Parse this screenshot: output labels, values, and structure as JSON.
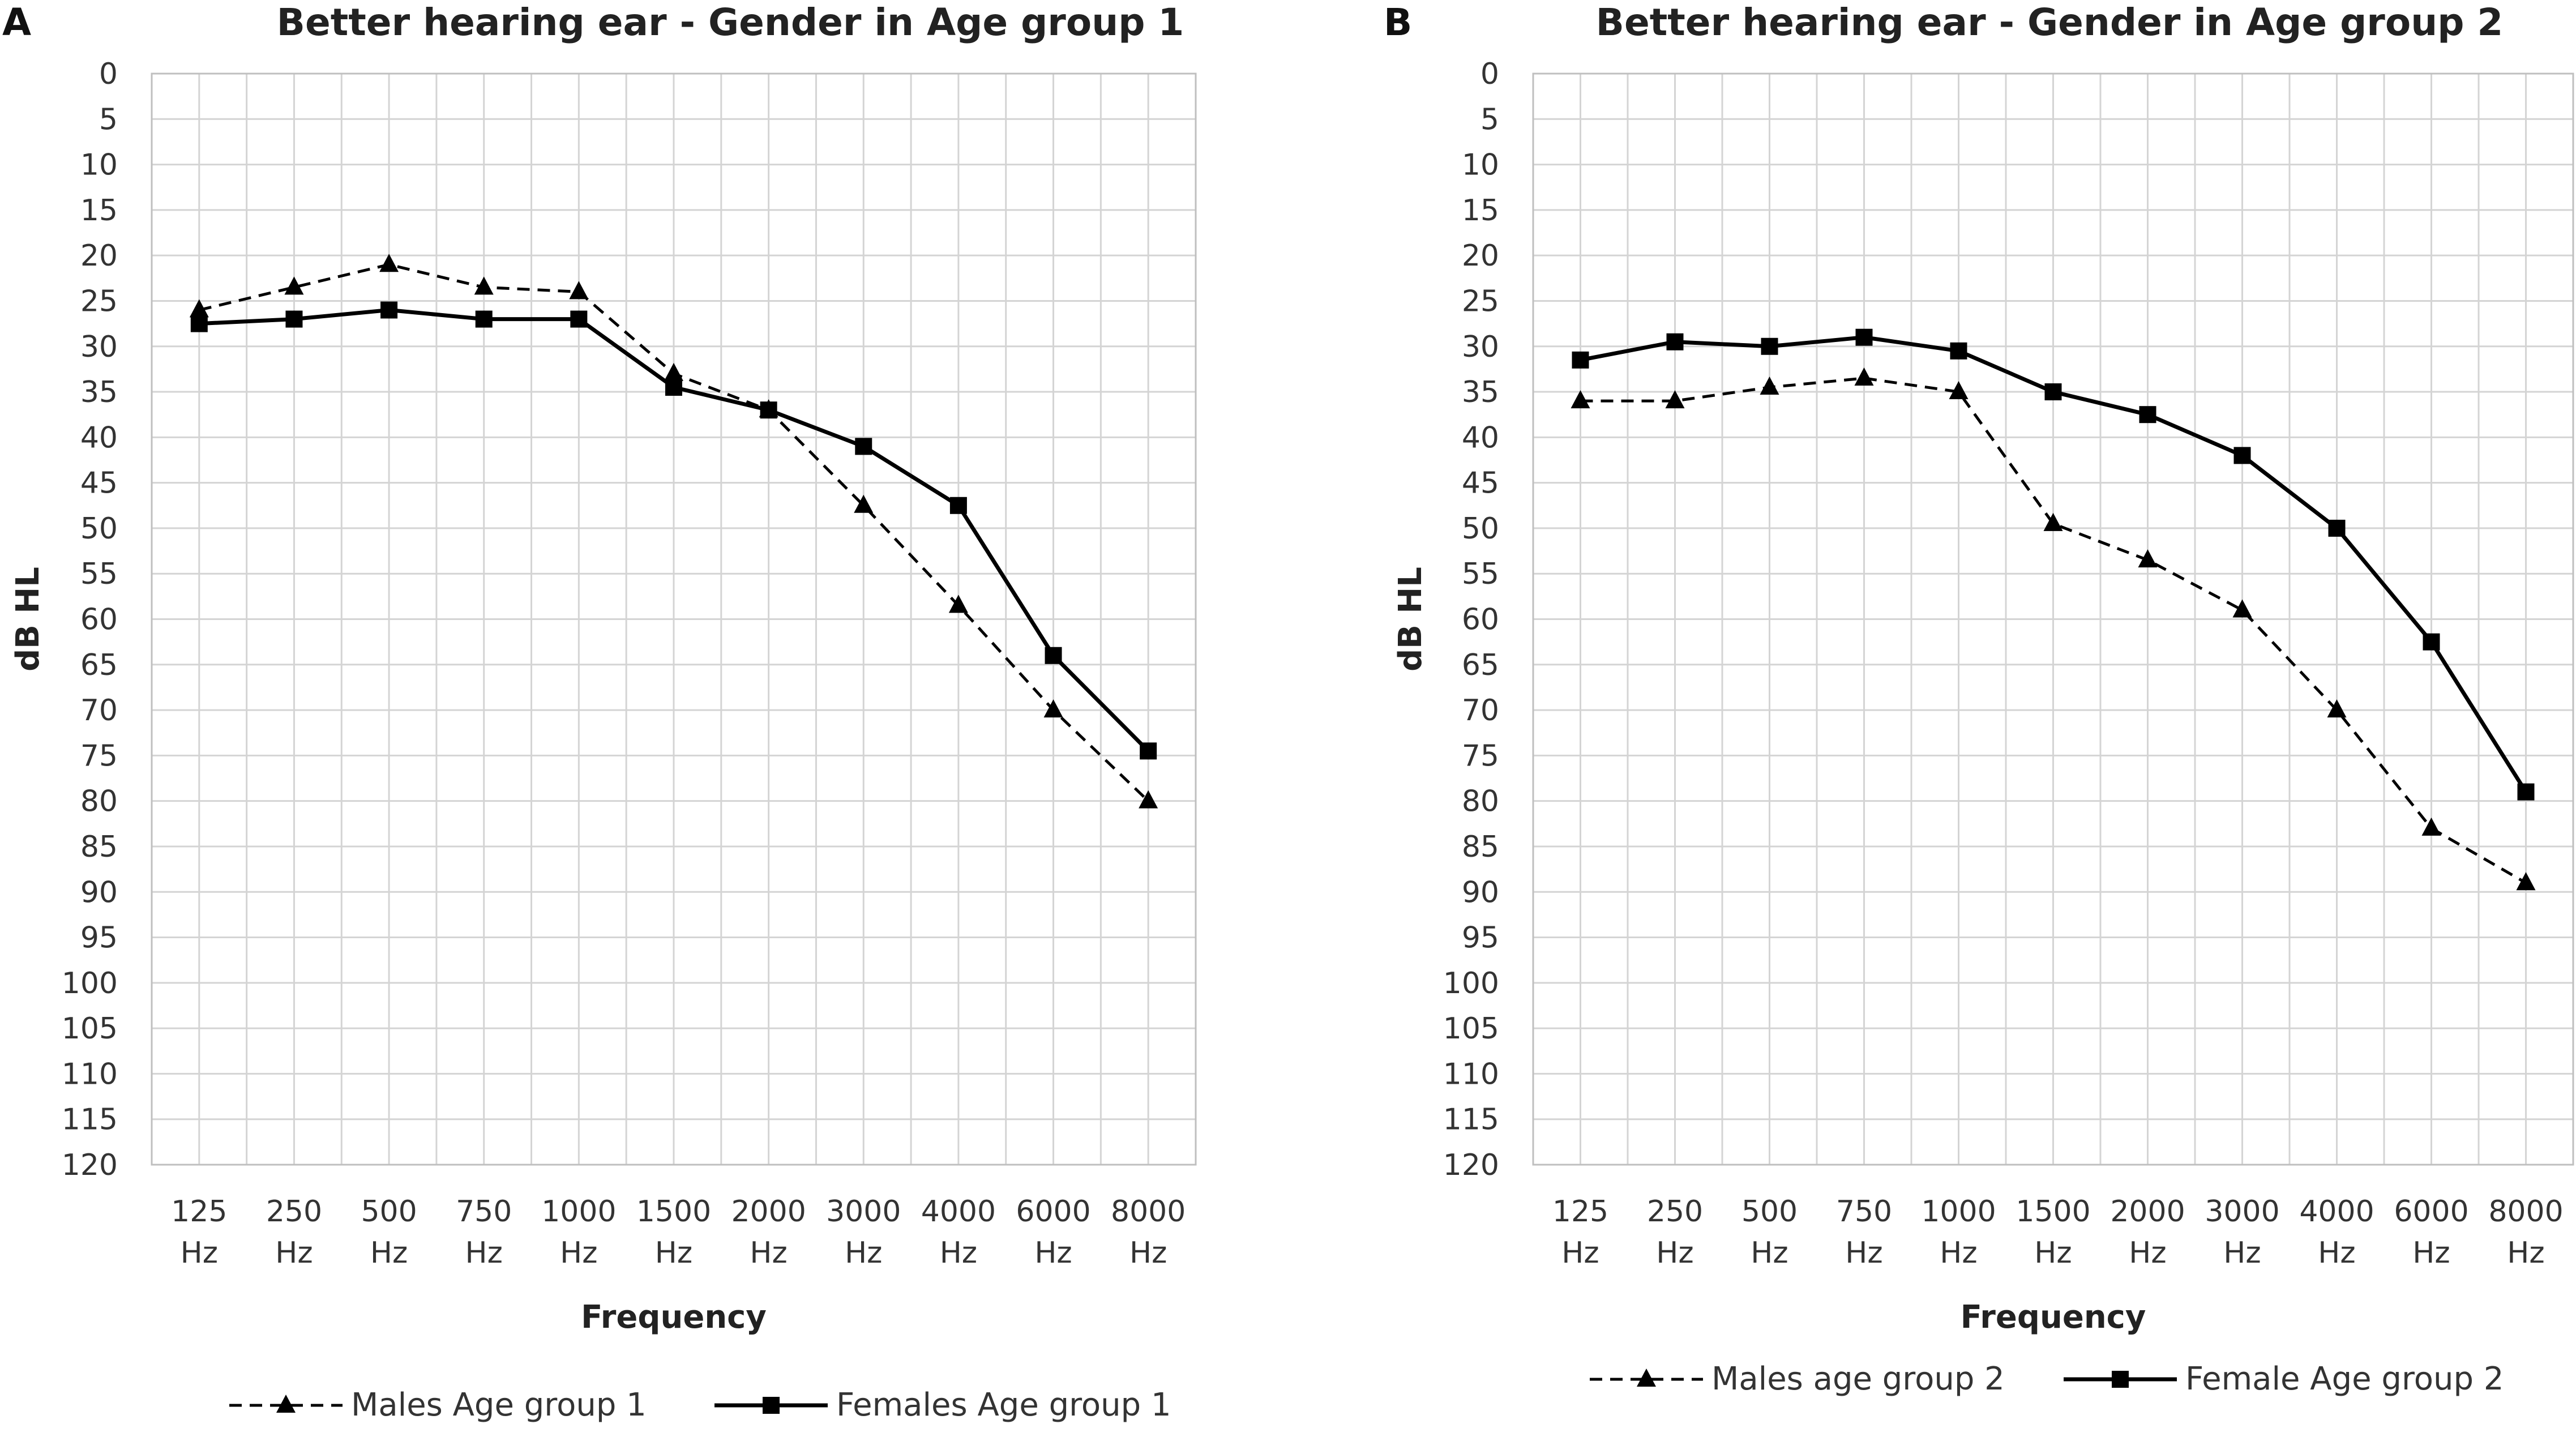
{
  "chart_data": [
    {
      "panel_label": "A",
      "type": "line",
      "title": "Better hearing ear - Gender in Age group 1",
      "xlabel": "Frequency",
      "ylabel": "dB HL",
      "ylim": [
        0,
        120
      ],
      "y_inverted": true,
      "y_ticks": [
        "0",
        "5",
        "10",
        "15",
        "20",
        "25",
        "30",
        "35",
        "40",
        "45",
        "50",
        "55",
        "60",
        "65",
        "70",
        "75",
        "80",
        "85",
        "90",
        "95",
        "100",
        "105",
        "110",
        "115",
        "120"
      ],
      "categories": [
        {
          "value": "125",
          "unit": "Hz"
        },
        {
          "value": "250",
          "unit": "Hz"
        },
        {
          "value": "500",
          "unit": "Hz"
        },
        {
          "value": "750",
          "unit": "Hz"
        },
        {
          "value": "1000",
          "unit": "Hz"
        },
        {
          "value": "1500",
          "unit": "Hz"
        },
        {
          "value": "2000",
          "unit": "Hz"
        },
        {
          "value": "3000",
          "unit": "Hz"
        },
        {
          "value": "4000",
          "unit": "Hz"
        },
        {
          "value": "6000",
          "unit": "Hz"
        },
        {
          "value": "8000",
          "unit": "Hz"
        }
      ],
      "series": [
        {
          "name": "Males Age group 1",
          "marker": "triangle",
          "line": "dashed",
          "values": [
            26,
            23.5,
            21,
            23.5,
            24,
            33,
            37,
            47.5,
            58.5,
            70,
            80
          ]
        },
        {
          "name": "Females Age group 1",
          "marker": "square",
          "line": "solid",
          "values": [
            27.5,
            27,
            26,
            27,
            27,
            34.5,
            37,
            41,
            47.5,
            64,
            74.5
          ]
        }
      ],
      "grid": true,
      "legend": "bottom"
    },
    {
      "panel_label": "B",
      "type": "line",
      "title": "Better hearing ear - Gender in Age group 2",
      "xlabel": "Frequency",
      "ylabel": "dB HL",
      "ylim": [
        0,
        120
      ],
      "y_inverted": true,
      "y_ticks": [
        "0",
        "5",
        "10",
        "15",
        "20",
        "25",
        "30",
        "35",
        "40",
        "45",
        "50",
        "55",
        "60",
        "65",
        "70",
        "75",
        "80",
        "85",
        "90",
        "95",
        "100",
        "105",
        "110",
        "115",
        "120"
      ],
      "categories": [
        {
          "value": "125",
          "unit": "Hz"
        },
        {
          "value": "250",
          "unit": "Hz"
        },
        {
          "value": "500",
          "unit": "Hz"
        },
        {
          "value": "750",
          "unit": "Hz"
        },
        {
          "value": "1000",
          "unit": "Hz"
        },
        {
          "value": "1500",
          "unit": "Hz"
        },
        {
          "value": "2000",
          "unit": "Hz"
        },
        {
          "value": "3000",
          "unit": "Hz"
        },
        {
          "value": "4000",
          "unit": "Hz"
        },
        {
          "value": "6000",
          "unit": "Hz"
        },
        {
          "value": "8000",
          "unit": "Hz"
        }
      ],
      "series": [
        {
          "name": "Males age group 2",
          "marker": "triangle",
          "line": "dashed",
          "values": [
            36,
            36,
            34.5,
            33.5,
            35,
            49.5,
            53.5,
            59,
            70,
            83,
            89
          ]
        },
        {
          "name": "Female Age group 2",
          "marker": "square",
          "line": "solid",
          "values": [
            31.5,
            29.5,
            30,
            29,
            30.5,
            35,
            37.5,
            42,
            50,
            62.5,
            79
          ]
        }
      ],
      "grid": true,
      "legend": "bottom"
    }
  ]
}
